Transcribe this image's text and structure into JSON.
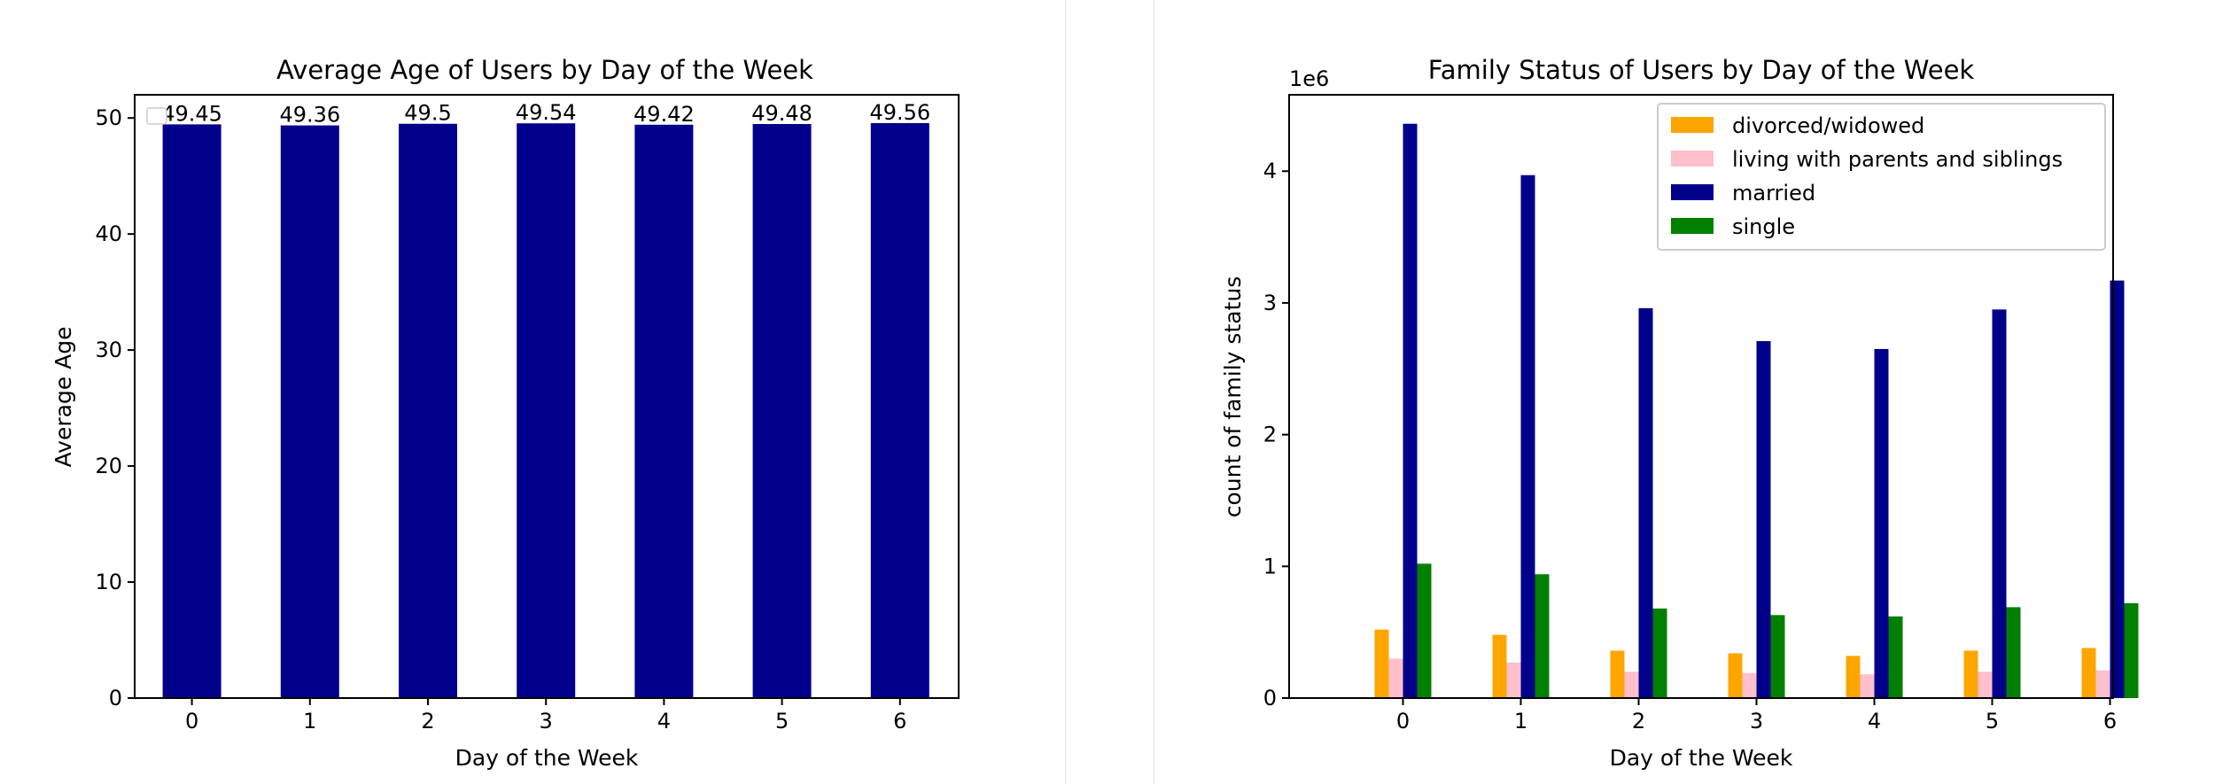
{
  "chart_data": [
    {
      "type": "bar",
      "title": "Average Age of Users by Day of the Week",
      "xlabel": "Day of the Week",
      "ylabel": "Average Age",
      "categories": [
        "0",
        "1",
        "2",
        "3",
        "4",
        "5",
        "6"
      ],
      "values": [
        49.45,
        49.36,
        49.5,
        49.54,
        49.42,
        49.48,
        49.56
      ],
      "value_labels": [
        "49.45",
        "49.36",
        "49.5",
        "49.54",
        "49.42",
        "49.48",
        "49.56"
      ],
      "ylim": [
        0,
        52.0
      ],
      "yticks": [
        0,
        10,
        20,
        30,
        40,
        50
      ],
      "ytick_labels": [
        "0",
        "10",
        "20",
        "30",
        "40",
        "50"
      ],
      "color": "#00008b",
      "legend": "top-left (empty)",
      "grid": false
    },
    {
      "type": "bar",
      "title": "Family Status of Users by Day of the Week",
      "xlabel": "Day of the Week",
      "ylabel": "count of family status",
      "offset_label": "1e6",
      "categories": [
        "0",
        "1",
        "2",
        "3",
        "4",
        "5",
        "6"
      ],
      "ylim": [
        0,
        4.58
      ],
      "yticks": [
        0,
        1,
        2,
        3,
        4
      ],
      "ytick_labels": [
        "0",
        "1",
        "2",
        "3",
        "4"
      ],
      "legend": "top-right",
      "grid": false,
      "series": [
        {
          "name": "divorced/widowed",
          "color": "#ffa500",
          "values": [
            0.52,
            0.48,
            0.36,
            0.34,
            0.32,
            0.36,
            0.38
          ]
        },
        {
          "name": "living with parents and siblings",
          "color": "#ffc0cb",
          "values": [
            0.3,
            0.27,
            0.2,
            0.19,
            0.18,
            0.2,
            0.21
          ]
        },
        {
          "name": "married",
          "color": "#00008b",
          "values": [
            4.36,
            3.97,
            2.96,
            2.71,
            2.65,
            2.95,
            3.17
          ]
        },
        {
          "name": "single",
          "color": "#008000",
          "values": [
            1.02,
            0.94,
            0.68,
            0.63,
            0.62,
            0.69,
            0.72
          ]
        }
      ]
    }
  ]
}
